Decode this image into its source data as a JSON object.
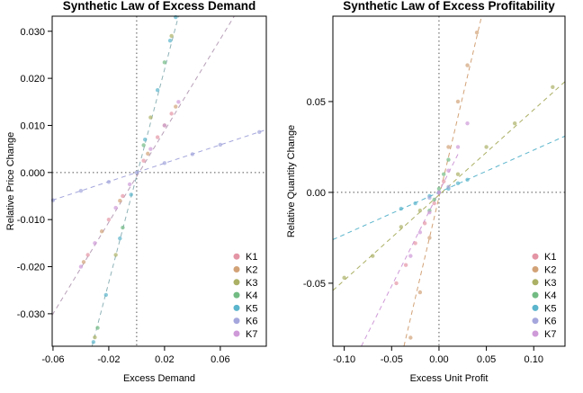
{
  "chart_data": [
    {
      "type": "scatter",
      "title": "Synthetic Law of Excess Demand",
      "x_label": "Excess Demand",
      "y_label": "Relative Price Change",
      "xlim": [
        -0.0606,
        0.093
      ],
      "ylim": [
        -0.0369,
        0.0332
      ],
      "xticks": [
        -0.06,
        -0.02,
        0.02,
        0.06
      ],
      "yticks": [
        {
          "value": -0.03,
          "label": "-0.030"
        },
        {
          "value": -0.02,
          "label": "-0.020"
        },
        {
          "value": -0.01,
          "label": "-0.010"
        },
        {
          "value": 0,
          "label": "0.000"
        },
        {
          "value": 0.01,
          "label": "0.010"
        },
        {
          "value": 0.02,
          "label": "0.020"
        },
        {
          "value": 0.03,
          "label": "0.030"
        }
      ],
      "hlines": [
        0
      ],
      "vlines": [
        0
      ],
      "legend": "bottom-right",
      "series": [
        {
          "name": "K1",
          "color": "#e495a5",
          "x": [
            -0.035,
            -0.02,
            -0.01,
            0.005,
            0.015,
            0.025
          ],
          "values": [
            -0.0175,
            -0.01,
            -0.005,
            0.0025,
            0.0075,
            0.0125
          ]
        },
        {
          "name": "K2",
          "color": "#d2a277",
          "x": [
            -0.038,
            -0.025,
            -0.012,
            0.008,
            0.02,
            0.028
          ],
          "values": [
            -0.019,
            -0.0125,
            -0.006,
            0.004,
            0.01,
            0.014
          ]
        },
        {
          "name": "K3",
          "color": "#abb065",
          "x": [
            -0.03,
            -0.015,
            0.01,
            0.025
          ],
          "values": [
            -0.035,
            -0.0175,
            0.0117,
            0.029
          ]
        },
        {
          "name": "K4",
          "color": "#72bb83",
          "x": [
            -0.028,
            -0.01,
            0.005,
            0.02
          ],
          "values": [
            -0.033,
            -0.0117,
            0.0058,
            0.0234
          ]
        },
        {
          "name": "K5",
          "color": "#5bb5cc",
          "x": [
            -0.031,
            -0.022,
            -0.012,
            -0.004,
            0.006,
            0.015,
            0.024,
            0.028
          ],
          "values": [
            -0.036,
            -0.026,
            -0.014,
            -0.0047,
            0.007,
            0.0175,
            0.028,
            0.033
          ]
        },
        {
          "name": "K6",
          "color": "#a4a6dc",
          "x": [
            -0.06,
            -0.04,
            -0.02,
            0,
            0.02,
            0.04,
            0.06,
            0.088
          ],
          "values": [
            -0.0059,
            -0.0039,
            -0.002,
            0,
            0.002,
            0.0039,
            0.0059,
            0.0086
          ]
        },
        {
          "name": "K7",
          "color": "#cf9ad8",
          "x": [
            -0.04,
            -0.03,
            -0.015,
            -0.005,
            0.01,
            0.02,
            0.03
          ],
          "values": [
            -0.02,
            -0.015,
            -0.0075,
            -0.0025,
            0.005,
            0.01,
            0.015
          ]
        }
      ],
      "fit_lines": [
        {
          "color": "#b8a0b8",
          "x": [
            -0.0606,
            0.07
          ],
          "values": [
            -0.0303,
            0.0332
          ]
        },
        {
          "color": "#8fb3b8",
          "x": [
            -0.032,
            0.03
          ],
          "values": [
            -0.0369,
            0.0332
          ]
        },
        {
          "color": "#a4a6dc",
          "x": [
            -0.0606,
            0.093
          ],
          "values": [
            -0.0059,
            0.0091
          ]
        }
      ]
    },
    {
      "type": "scatter",
      "title": "Synthetic Law of Excess Profitability",
      "x_label": "Excess Unit Profit",
      "y_label": "Relative Quantity Change",
      "xlim": [
        -0.112,
        0.133
      ],
      "ylim": [
        -0.0847,
        0.097
      ],
      "xticks": [
        {
          "value": -0.1,
          "label": "-0.10"
        },
        -0.05,
        {
          "value": 0,
          "label": "0.00"
        },
        0.05,
        {
          "value": 0.1,
          "label": "0.10"
        }
      ],
      "yticks": [
        -0.05,
        {
          "value": 0,
          "label": "0.00"
        },
        0.05
      ],
      "hlines": [
        0
      ],
      "vlines": [
        0
      ],
      "legend": "bottom-right",
      "series": [
        {
          "name": "K1",
          "color": "#e495a5",
          "x": [
            -0.045,
            -0.035,
            -0.025,
            -0.015,
            -0.005,
            0.005
          ],
          "values": [
            -0.05,
            -0.04,
            -0.028,
            -0.017,
            -0.006,
            0.006
          ]
        },
        {
          "name": "K2",
          "color": "#d2a277",
          "x": [
            -0.03,
            -0.02,
            -0.01,
            0,
            0.01,
            0.02,
            0.03,
            0.04
          ],
          "values": [
            -0.08,
            -0.055,
            -0.025,
            0,
            0.025,
            0.05,
            0.07,
            0.088
          ]
        },
        {
          "name": "K3",
          "color": "#abb065",
          "x": [
            -0.1,
            -0.07,
            -0.04,
            -0.02,
            0.02,
            0.05,
            0.08,
            0.12
          ],
          "values": [
            -0.047,
            -0.035,
            -0.019,
            -0.01,
            0.01,
            0.025,
            0.038,
            0.058
          ]
        },
        {
          "name": "K4",
          "color": "#72bb83",
          "x": [
            -0.01,
            -0.005,
            0,
            0.005,
            0.01
          ],
          "values": [
            -0.01,
            -0.004,
            0.002,
            0.01,
            0.018
          ]
        },
        {
          "name": "K5",
          "color": "#5bb5cc",
          "x": [
            -0.04,
            -0.025,
            -0.01,
            0,
            0.01,
            0.02,
            0.03
          ],
          "values": [
            -0.009,
            -0.006,
            -0.002,
            0,
            0.002,
            0.005,
            0.007
          ]
        },
        {
          "name": "K6",
          "color": "#a4a6dc",
          "x": [
            -0.01,
            0,
            0.01
          ],
          "values": [
            -0.003,
            0,
            0.003
          ]
        },
        {
          "name": "K7",
          "color": "#cf9ad8",
          "x": [
            -0.03,
            -0.02,
            -0.01,
            0,
            0.01,
            0.02,
            0.03
          ],
          "values": [
            -0.035,
            -0.022,
            -0.011,
            0,
            0.012,
            0.025,
            0.038
          ]
        }
      ],
      "fit_lines": [
        {
          "color": "#5bb5cc",
          "x": [
            -0.112,
            0.133
          ],
          "values": [
            -0.026,
            0.031
          ]
        },
        {
          "color": "#abb065",
          "x": [
            -0.112,
            0.133
          ],
          "values": [
            -0.054,
            0.061
          ]
        },
        {
          "color": "#d2a277",
          "x": [
            -0.037,
            0.045
          ],
          "values": [
            -0.0847,
            0.097
          ]
        },
        {
          "color": "#cf9ad8",
          "x": [
            -0.082,
            0.02
          ],
          "values": [
            -0.0847,
            0.021
          ]
        }
      ]
    }
  ]
}
